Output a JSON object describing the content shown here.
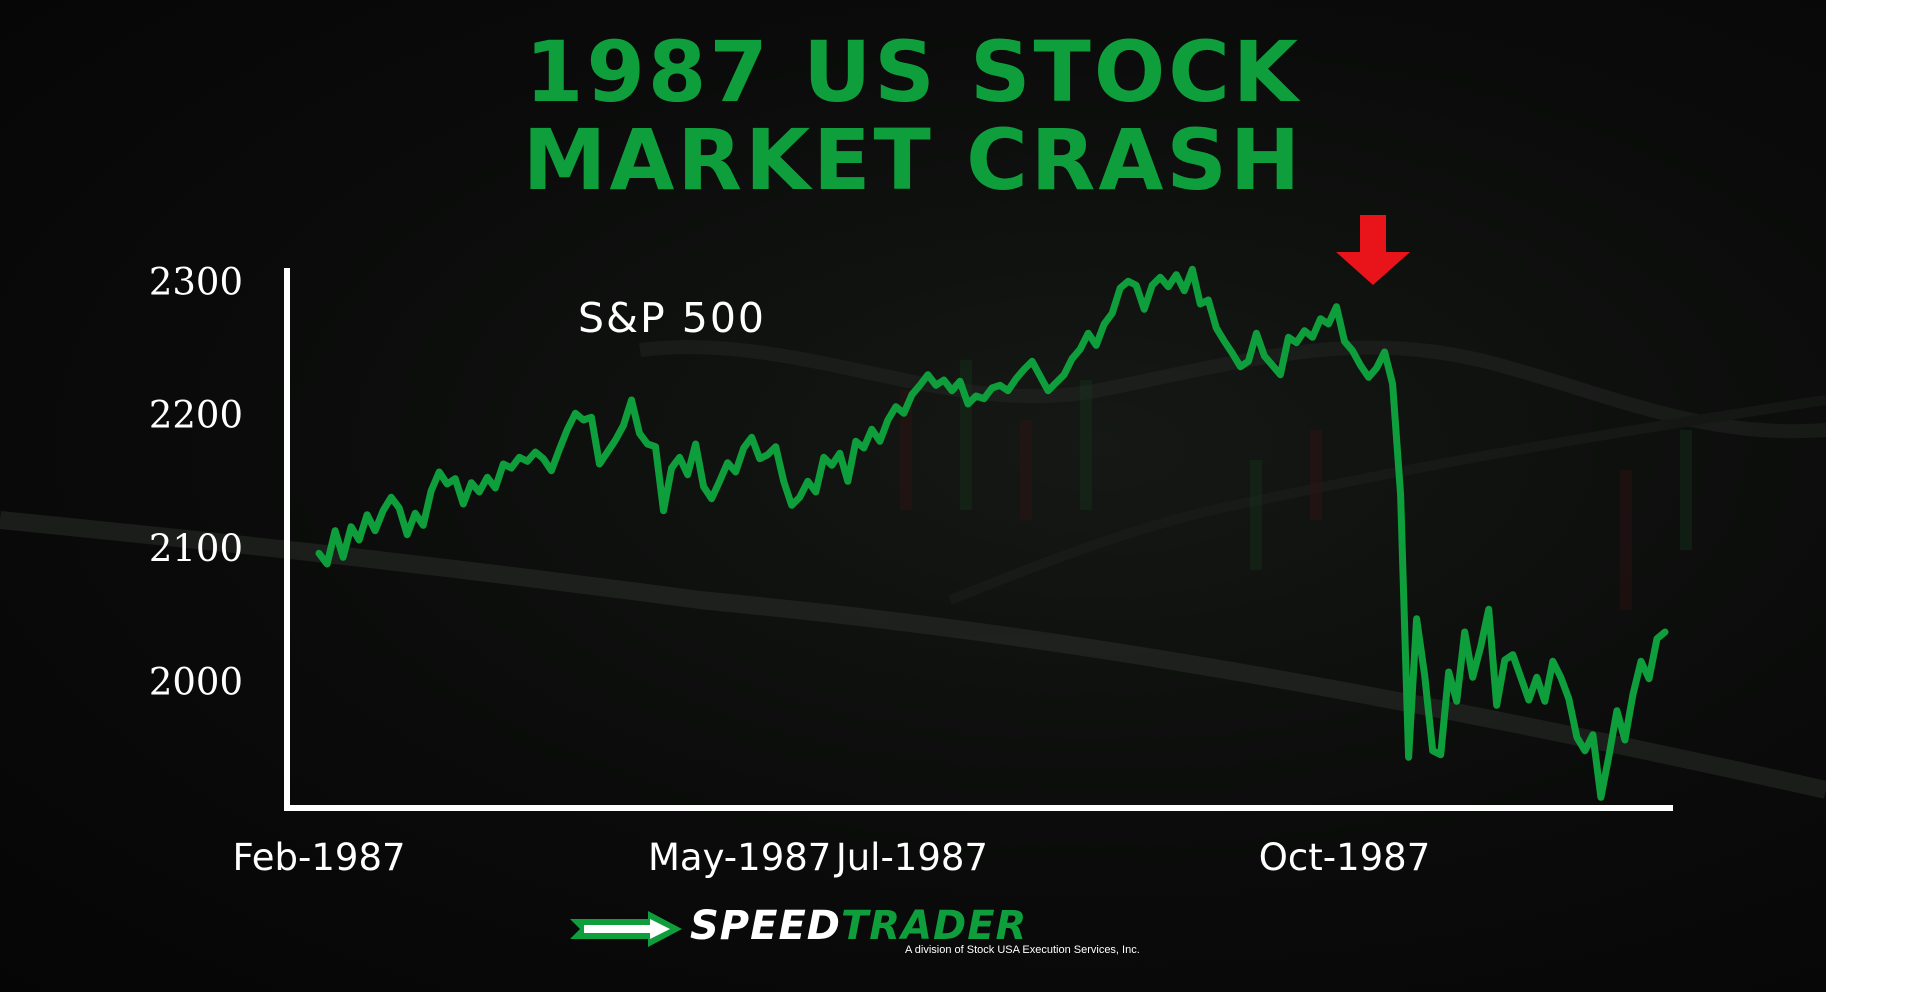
{
  "title": {
    "line1": "1987 US STOCK",
    "line2": "MARKET CRASH"
  },
  "colors": {
    "line": "#0f9e3c",
    "axis": "#ffffff",
    "arrow": "#e8141a",
    "background": "#0a0b0a"
  },
  "chart_data": {
    "type": "line",
    "series_label": "S&P 500",
    "y_ticks": [
      "2300",
      "2200",
      "2100",
      "2000"
    ],
    "ylim": [
      1905,
      2310
    ],
    "x_ticks": [
      {
        "label": "Feb-1987",
        "x": 0
      },
      {
        "label": "May-1987",
        "x": 52.5
      },
      {
        "label": "Jul-1987",
        "x": 74
      },
      {
        "label": "Oct-1987",
        "x": 128
      }
    ],
    "xlim": [
      -4,
      169
    ],
    "series": [
      {
        "values": [
          2096,
          2088,
          2113,
          2093,
          2116,
          2106,
          2125,
          2113,
          2128,
          2138,
          2130,
          2110,
          2126,
          2117,
          2143,
          2157,
          2148,
          2152,
          2133,
          2149,
          2142,
          2153,
          2145,
          2163,
          2160,
          2168,
          2165,
          2172,
          2167,
          2158,
          2174,
          2189,
          2201,
          2196,
          2198,
          2163,
          2172,
          2181,
          2192,
          2211,
          2186,
          2178,
          2176,
          2128,
          2160,
          2168,
          2155,
          2178,
          2146,
          2137,
          2150,
          2164,
          2157,
          2175,
          2183,
          2167,
          2170,
          2176,
          2150,
          2132,
          2138,
          2150,
          2142,
          2168,
          2162,
          2171,
          2150,
          2180,
          2175,
          2189,
          2180,
          2196,
          2206,
          2201,
          2215,
          2222,
          2230,
          2222,
          2226,
          2218,
          2225,
          2208,
          2214,
          2212,
          2220,
          2222,
          2218,
          2227,
          2234,
          2240,
          2229,
          2218,
          2224,
          2230,
          2242,
          2249,
          2261,
          2252,
          2268,
          2276,
          2295,
          2300,
          2297,
          2279,
          2297,
          2303,
          2296,
          2305,
          2293,
          2309,
          2283,
          2286,
          2265,
          2255,
          2246,
          2236,
          2240,
          2261,
          2244,
          2237,
          2230,
          2258,
          2254,
          2263,
          2258,
          2272,
          2268,
          2281,
          2255,
          2248,
          2237,
          2228,
          2235,
          2247,
          2223,
          2140,
          1943,
          2047,
          2005,
          1948,
          1945,
          2007,
          1985,
          2037,
          2003,
          2026,
          2054,
          1982,
          2016,
          2020,
          2003,
          1986,
          2003,
          1985,
          2015,
          2003,
          1987,
          1958,
          1948,
          1960,
          1913,
          1944,
          1978,
          1956,
          1990,
          2015,
          2002,
          2032,
          2037
        ]
      }
    ],
    "annotation": "crash-marker-arrow",
    "grid": false,
    "legend": "none"
  },
  "logo": {
    "speed": "SPEED",
    "trader": "TRADER",
    "subtitle": "A division of Stock USA Execution Services, Inc."
  }
}
